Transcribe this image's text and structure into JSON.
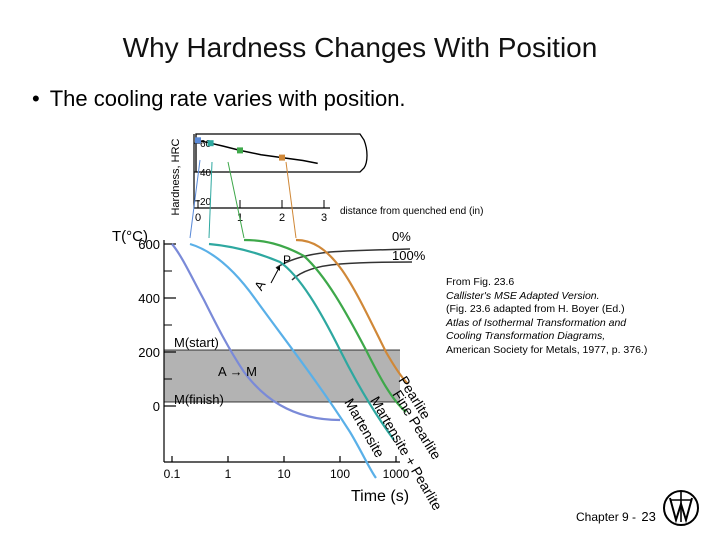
{
  "slide": {
    "title": "Why Hardness Changes With Position",
    "bullet": "The cooling rate varies with position.",
    "footer_chapter": "Chapter 9 -",
    "footer_page": "23"
  },
  "reference": {
    "line1": "From Fig. 23.6",
    "line2": "Callister's MSE Adapted Version.",
    "line3": "(Fig. 23.6 adapted from H. Boyer (Ed.)",
    "line4": "Atlas of Isothermal Transformation and Cooling Transformation Diagrams,",
    "line5": "American Society for Metals, 1977, p. 376.)"
  },
  "chart_data": [
    {
      "type": "line",
      "ylabel": "Hardness, HRC",
      "xlabel": "distance from quenched end (in)",
      "x_ticks": [
        "0",
        "1",
        "2",
        "3"
      ],
      "y_ticks": [
        "20",
        "40",
        "60"
      ],
      "xlim": [
        0,
        3
      ],
      "ylim": [
        15,
        65
      ],
      "series": [
        {
          "x": [
            0,
            0.3,
            0.6,
            1.0,
            1.5,
            2.0,
            2.5,
            2.85
          ],
          "y": [
            62,
            60,
            58,
            55,
            52,
            50,
            48,
            46
          ]
        }
      ],
      "markers": [
        {
          "x": 0.0,
          "y": 62,
          "color": "#5a8ad8"
        },
        {
          "x": 0.3,
          "y": 60,
          "color": "#2ea8a0"
        },
        {
          "x": 1.0,
          "y": 55,
          "color": "#3ea84a"
        },
        {
          "x": 2.0,
          "y": 50,
          "color": "#d08838"
        }
      ]
    },
    {
      "type": "line",
      "ylabel": "T(°C)",
      "xlabel": "Time (s)",
      "x_scale": "log",
      "x_ticks": [
        "0.1",
        "1",
        "10",
        "100",
        "1000"
      ],
      "y_ticks": [
        "0",
        "200",
        "400",
        "600"
      ],
      "annotations": {
        "p_label": "P",
        "a_label": "A",
        "start_pct": "0%",
        "end_pct": "100%",
        "ms_label": "M(start)",
        "mf_label": "M(finish)",
        "transform_label": "A → M",
        "curve_pearlite": "Pearlite",
        "curve_fine_pearlite": "Fine Pearlite",
        "curve_mix": "Martensite + Pearlite",
        "curve_martensite": "Martensite"
      },
      "colors": {
        "pearlite": "#d08838",
        "fine_pearlite": "#3ea84a",
        "mix": "#5ab0e8",
        "martensite": "#7a8ad8",
        "nose": "#333333",
        "region": "#b3b3b3"
      }
    }
  ]
}
